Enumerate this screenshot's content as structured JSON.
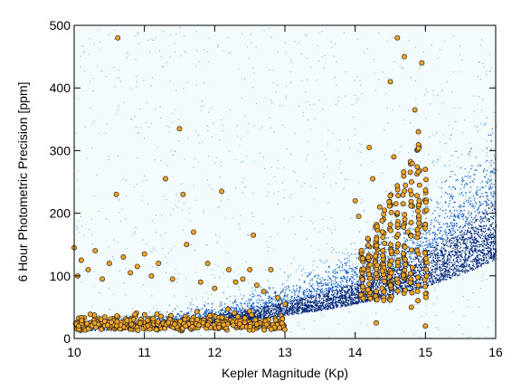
{
  "chart_data": {
    "type": "scatter",
    "title": "",
    "xlabel": "Kepler Magnitude (Kp)",
    "ylabel": "6 Hour Photometric Precision [ppm]",
    "xlim": [
      10,
      16
    ],
    "ylim": [
      0,
      500
    ],
    "xticks": [
      10,
      11,
      12,
      13,
      14,
      15,
      16
    ],
    "yticks": [
      0,
      100,
      200,
      300,
      400,
      500
    ],
    "grid": false,
    "legend": "none",
    "colors": {
      "background": "#f3fbfd",
      "density_light": "#5aa6e6",
      "density_mid": "#1f63c4",
      "density_dark": "#0a2a7a",
      "highlight_fill": "#f5a623",
      "highlight_edge": "#222222"
    },
    "series": [
      {
        "kind": "density",
        "description_lower_envelope": [
          [
            10.0,
            10
          ],
          [
            11.0,
            14
          ],
          [
            12.0,
            20
          ],
          [
            13.0,
            28
          ],
          [
            14.0,
            45
          ],
          [
            15.0,
            75
          ],
          [
            15.5,
            110
          ],
          [
            16.0,
            170
          ]
        ],
        "description_upper_envelope": [
          [
            13.5,
            60
          ],
          [
            14.5,
            110
          ],
          [
            15.0,
            170
          ],
          [
            15.5,
            260
          ],
          [
            16.0,
            370
          ]
        ]
      },
      {
        "kind": "highlight",
        "points": [
          [
            10.0,
            145
          ],
          [
            10.05,
            100
          ],
          [
            10.1,
            125
          ],
          [
            10.2,
            110
          ],
          [
            10.3,
            140
          ],
          [
            10.4,
            95
          ],
          [
            10.5,
            120
          ],
          [
            10.6,
            230
          ],
          [
            10.62,
            480
          ],
          [
            10.7,
            130
          ],
          [
            10.8,
            105
          ],
          [
            10.9,
            115
          ],
          [
            11.0,
            135
          ],
          [
            11.1,
            100
          ],
          [
            11.2,
            120
          ],
          [
            11.3,
            255
          ],
          [
            11.4,
            95
          ],
          [
            11.5,
            335
          ],
          [
            11.55,
            230
          ],
          [
            11.6,
            150
          ],
          [
            11.7,
            170
          ],
          [
            11.8,
            90
          ],
          [
            11.9,
            120
          ],
          [
            12.0,
            80
          ],
          [
            12.1,
            235
          ],
          [
            12.2,
            110
          ],
          [
            12.3,
            90
          ],
          [
            12.4,
            95
          ],
          [
            12.5,
            110
          ],
          [
            12.55,
            165
          ],
          [
            12.6,
            85
          ],
          [
            12.7,
            75
          ],
          [
            12.8,
            110
          ],
          [
            12.9,
            65
          ],
          [
            13.0,
            55
          ],
          [
            14.0,
            220
          ],
          [
            14.05,
            195
          ],
          [
            14.1,
            105
          ],
          [
            14.2,
            305
          ],
          [
            14.25,
            255
          ],
          [
            14.3,
            135
          ],
          [
            14.35,
            210
          ],
          [
            14.4,
            120
          ],
          [
            14.5,
            410
          ],
          [
            14.55,
            290
          ],
          [
            14.6,
            480
          ],
          [
            14.7,
            450
          ],
          [
            14.75,
            170
          ],
          [
            14.8,
            230
          ],
          [
            14.85,
            365
          ],
          [
            14.9,
            330
          ],
          [
            14.95,
            440
          ],
          [
            15.0,
            270
          ],
          [
            15.0,
            20
          ],
          [
            14.3,
            25
          ],
          [
            14.8,
            50
          ]
        ]
      }
    ]
  }
}
